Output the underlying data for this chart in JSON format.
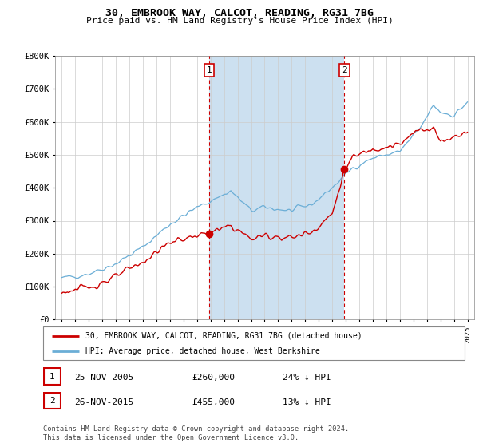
{
  "title": "30, EMBROOK WAY, CALCOT, READING, RG31 7BG",
  "subtitle": "Price paid vs. HM Land Registry's House Price Index (HPI)",
  "legend_line1": "30, EMBROOK WAY, CALCOT, READING, RG31 7BG (detached house)",
  "legend_line2": "HPI: Average price, detached house, West Berkshire",
  "footnote": "Contains HM Land Registry data © Crown copyright and database right 2024.\nThis data is licensed under the Open Government Licence v3.0.",
  "transaction1_date": "25-NOV-2005",
  "transaction1_price": "£260,000",
  "transaction1_hpi": "24% ↓ HPI",
  "transaction2_date": "26-NOV-2015",
  "transaction2_price": "£455,000",
  "transaction2_hpi": "13% ↓ HPI",
  "sale1_x": 2005.9,
  "sale1_y": 260000,
  "sale2_x": 2015.9,
  "sale2_y": 455000,
  "hpi_color": "#6baed6",
  "price_color": "#cc0000",
  "vline_color": "#cc0000",
  "shade_color": "#cce0f0",
  "plot_bg": "#ffffff",
  "ylim": [
    0,
    800000
  ],
  "xlim_left": 1994.5,
  "xlim_right": 2025.5
}
